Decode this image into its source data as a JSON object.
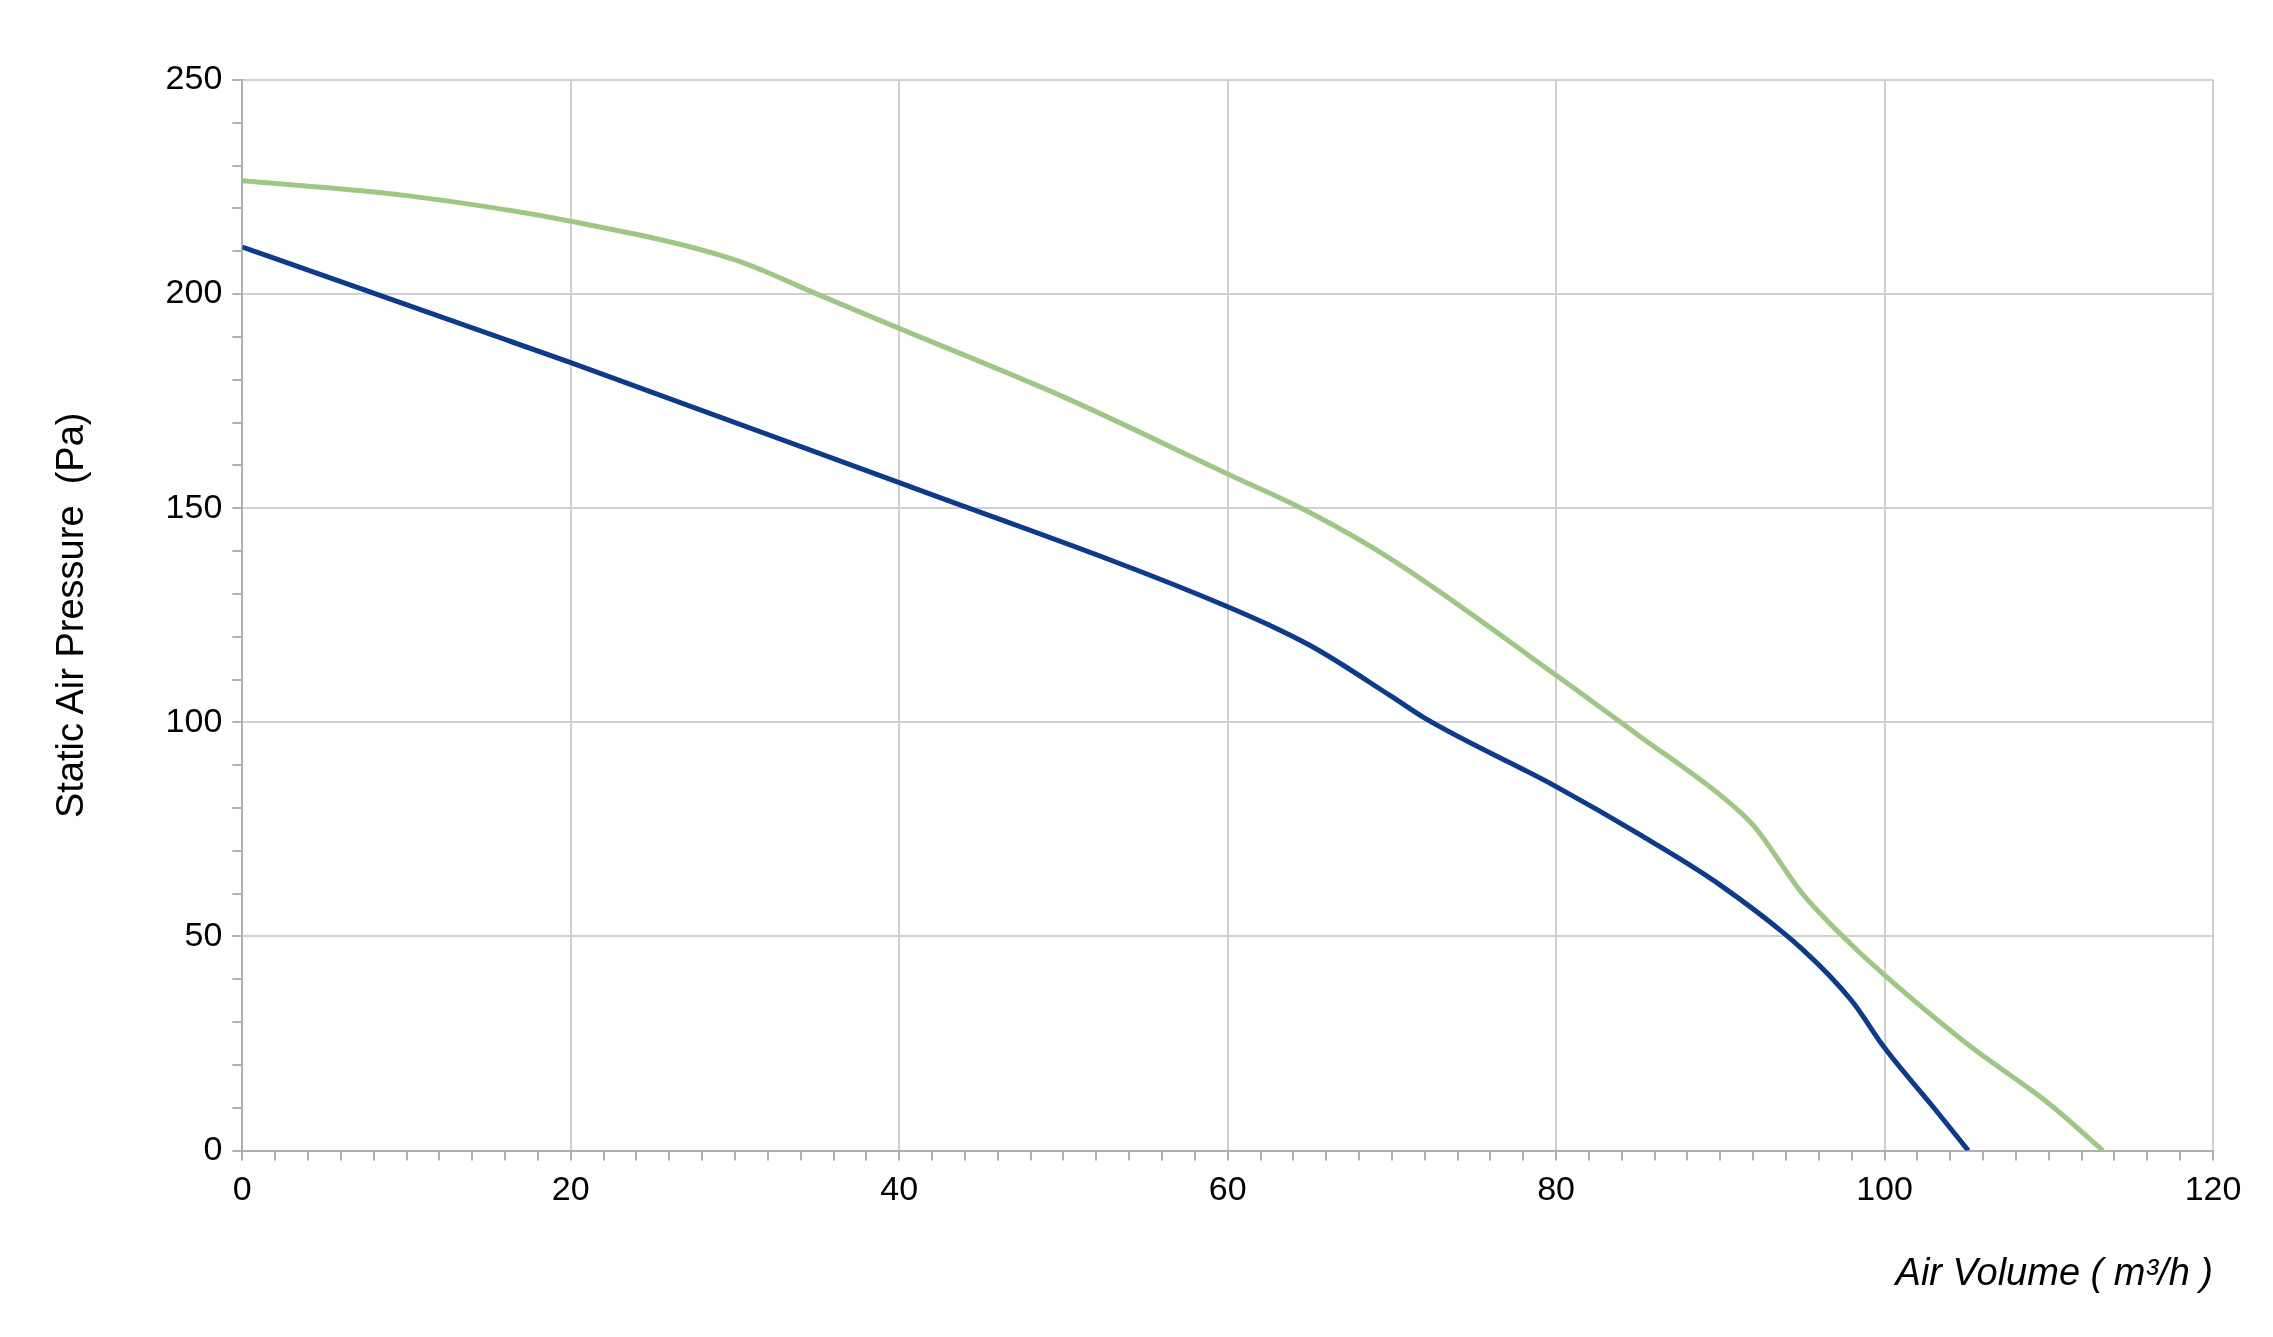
{
  "chart_data": {
    "type": "line",
    "xlabel": "Air Volume ( m³/h )",
    "ylabel": "Static Air Pressure  (Pa)",
    "xlim": [
      0,
      120
    ],
    "ylim": [
      0,
      250
    ],
    "xticks": [
      0,
      {
        "value": 2,
        "label": null
      },
      {
        "value": 4,
        "label": null
      },
      {
        "value": 6,
        "label": null
      },
      {
        "value": 8,
        "label": null
      },
      {
        "value": 10,
        "label": null
      },
      {
        "value": 12,
        "label": null
      },
      {
        "value": 14,
        "label": null
      },
      {
        "value": 16,
        "label": null
      },
      {
        "value": 18,
        "label": null
      },
      20,
      {
        "value": 22,
        "label": null
      },
      {
        "value": 24,
        "label": null
      },
      {
        "value": 26,
        "label": null
      },
      {
        "value": 28,
        "label": null
      },
      {
        "value": 30,
        "label": null
      },
      {
        "value": 32,
        "label": null
      },
      {
        "value": 34,
        "label": null
      },
      {
        "value": 36,
        "label": null
      },
      {
        "value": 38,
        "label": null
      },
      40,
      {
        "value": 42,
        "label": null
      },
      {
        "value": 44,
        "label": null
      },
      {
        "value": 46,
        "label": null
      },
      {
        "value": 48,
        "label": null
      },
      {
        "value": 50,
        "label": null
      },
      {
        "value": 52,
        "label": null
      },
      {
        "value": 54,
        "label": null
      },
      {
        "value": 56,
        "label": null
      },
      {
        "value": 58,
        "label": null
      },
      60,
      {
        "value": 62,
        "label": null
      },
      {
        "value": 64,
        "label": null
      },
      {
        "value": 66,
        "label": null
      },
      {
        "value": 68,
        "label": null
      },
      {
        "value": 70,
        "label": null
      },
      {
        "value": 72,
        "label": null
      },
      {
        "value": 74,
        "label": null
      },
      {
        "value": 76,
        "label": null
      },
      {
        "value": 78,
        "label": null
      },
      80,
      {
        "value": 82,
        "label": null
      },
      {
        "value": 84,
        "label": null
      },
      {
        "value": 86,
        "label": null
      },
      {
        "value": 88,
        "label": null
      },
      {
        "value": 90,
        "label": null
      },
      {
        "value": 92,
        "label": null
      },
      {
        "value": 94,
        "label": null
      },
      {
        "value": 96,
        "label": null
      },
      {
        "value": 98,
        "label": null
      },
      100,
      {
        "value": 102,
        "label": null
      },
      {
        "value": 104,
        "label": null
      },
      {
        "value": 106,
        "label": null
      },
      {
        "value": 108,
        "label": null
      },
      {
        "value": 110,
        "label": null
      },
      {
        "value": 112,
        "label": null
      },
      {
        "value": 114,
        "label": null
      },
      {
        "value": 116,
        "label": null
      },
      {
        "value": 118,
        "label": null
      },
      120
    ],
    "yticks": [
      0,
      {
        "value": 10,
        "label": null
      },
      {
        "value": 20,
        "label": null
      },
      {
        "value": 30,
        "label": null
      },
      {
        "value": 40,
        "label": null
      },
      50,
      {
        "value": 60,
        "label": null
      },
      {
        "value": 70,
        "label": null
      },
      {
        "value": 80,
        "label": null
      },
      {
        "value": 90,
        "label": null
      },
      100,
      {
        "value": 110,
        "label": null
      },
      {
        "value": 120,
        "label": null
      },
      {
        "value": 130,
        "label": null
      },
      {
        "value": 140,
        "label": null
      },
      150,
      {
        "value": 160,
        "label": null
      },
      {
        "value": 170,
        "label": null
      },
      {
        "value": 180,
        "label": null
      },
      {
        "value": 190,
        "label": null
      },
      200,
      {
        "value": 210,
        "label": null
      },
      {
        "value": 220,
        "label": null
      },
      {
        "value": 230,
        "label": null
      },
      {
        "value": 240,
        "label": null
      },
      250
    ],
    "grid": true,
    "series": [
      {
        "color": "#9dc884",
        "x": [
          0,
          10,
          20,
          30,
          35,
          40,
          50,
          60,
          65,
          70,
          80,
          85,
          90,
          92,
          95,
          98,
          100,
          105,
          110,
          113.3
        ],
        "values": [
          226.5,
          223,
          217,
          208,
          200,
          192,
          176,
          158,
          149,
          138,
          111,
          97,
          83,
          76,
          60,
          48,
          41,
          25,
          11,
          0
        ]
      },
      {
        "color": "#0c3b8c",
        "x": [
          0,
          20,
          40,
          60,
          65,
          70,
          72,
          80,
          85,
          90,
          95,
          98,
          100,
          103,
          105.1
        ],
        "values": [
          211,
          184,
          156,
          127,
          118,
          106,
          101,
          85,
          74,
          62,
          47,
          35,
          24,
          10,
          0
        ]
      }
    ]
  }
}
